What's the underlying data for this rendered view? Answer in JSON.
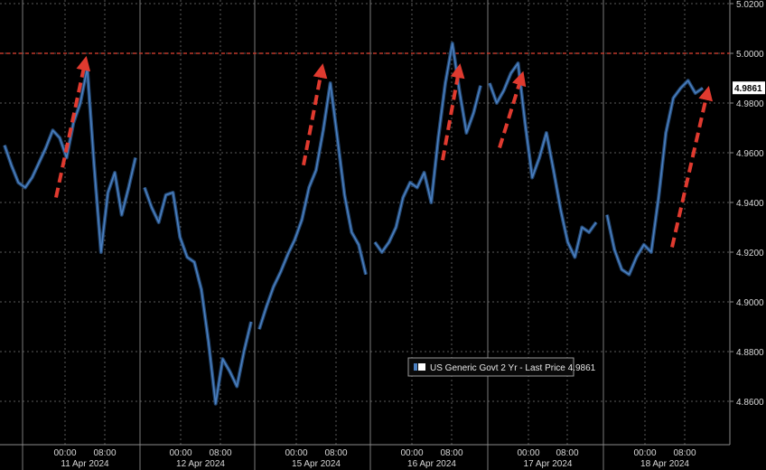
{
  "chart_data": {
    "type": "line",
    "ylim": [
      4.85,
      5.02
    ],
    "y_ticks": [
      "5.0200",
      "5.0000",
      "4.9800",
      "4.9600",
      "4.9400",
      "4.9200",
      "4.9000",
      "4.8800",
      "4.8600"
    ],
    "x_tick_times": [
      "00:00",
      "08:00",
      "00:00",
      "08:00",
      "00:00",
      "08:00",
      "00:00",
      "08:00",
      "00:00",
      "08:00",
      "00:00",
      "08:00"
    ],
    "x_dates": [
      "11 Apr 2024",
      "12 Apr 2024",
      "15 Apr 2024",
      "16 Apr 2024",
      "17 Apr 2024",
      "18 Apr 2024"
    ],
    "reference_line": 5.0,
    "last_price_label": "4.9861",
    "legend": {
      "text": "US Generic Govt 2 Yr - Last Price 4.9861"
    },
    "grid": true,
    "colors": {
      "line": "#4a7fc0",
      "reference": "#c0392b",
      "arrow": "#e03a2f",
      "label_bg": "#ffffff"
    },
    "sessions": [
      {
        "name": "11 Apr 2024",
        "values": [
          4.963,
          4.955,
          4.948,
          4.946,
          4.95,
          4.956,
          4.962,
          4.969,
          4.966,
          4.958,
          4.972,
          4.98,
          4.994,
          4.955,
          4.92,
          4.944,
          4.952,
          4.935,
          4.946,
          4.958
        ]
      },
      {
        "name": "12 Apr 2024",
        "values": [
          4.946,
          4.938,
          4.932,
          4.943,
          4.944,
          4.926,
          4.918,
          4.916,
          4.905,
          4.884,
          4.859,
          4.877,
          4.872,
          4.866,
          4.88,
          4.892
        ]
      },
      {
        "name": "15 Apr 2024",
        "values": [
          4.889,
          4.898,
          4.906,
          4.912,
          4.919,
          4.925,
          4.933,
          4.946,
          4.953,
          4.969,
          4.988,
          4.966,
          4.943,
          4.928,
          4.923,
          4.911
        ]
      },
      {
        "name": "16 Apr 2024",
        "values": [
          4.924,
          4.92,
          4.924,
          4.93,
          4.942,
          4.948,
          4.946,
          4.952,
          4.94,
          4.966,
          4.988,
          5.004,
          4.985,
          4.968,
          4.976,
          4.987
        ]
      },
      {
        "name": "17 Apr 2024",
        "values": [
          4.988,
          4.98,
          4.985,
          4.992,
          4.996,
          4.972,
          4.95,
          4.958,
          4.968,
          4.953,
          4.937,
          4.924,
          4.918,
          4.93,
          4.928,
          4.932
        ]
      },
      {
        "name": "18 Apr 2024",
        "values": [
          4.935,
          4.921,
          4.913,
          4.911,
          4.918,
          4.923,
          4.92,
          4.942,
          4.968,
          4.982,
          4.986,
          4.989,
          4.984,
          4.986
        ]
      }
    ],
    "arrows": [
      {
        "x_session": "11 Apr 2024",
        "from": 4.942,
        "to": 4.999
      },
      {
        "x_session": "15 Apr 2024",
        "from": 4.955,
        "to": 4.996
      },
      {
        "x_session": "16 Apr 2024",
        "from": 4.957,
        "to": 4.996
      },
      {
        "x_session": "17 Apr 2024",
        "from": 4.962,
        "to": 4.993
      },
      {
        "x_session": "18 Apr 2024",
        "from": 4.922,
        "to": 4.987
      }
    ]
  }
}
